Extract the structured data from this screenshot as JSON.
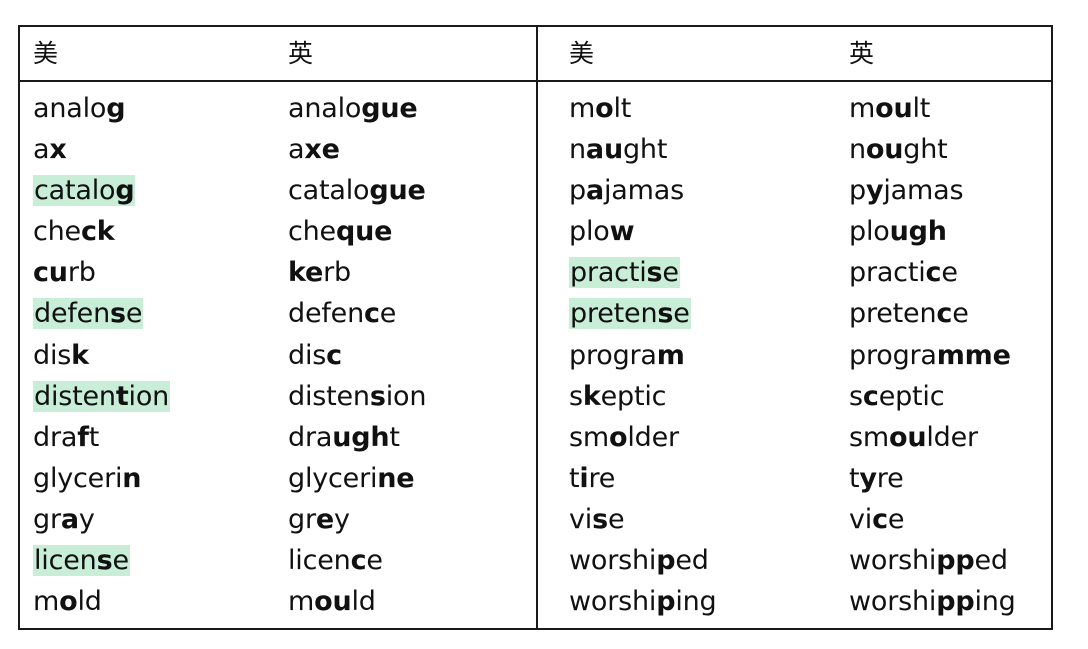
{
  "table": {
    "left": {
      "header": {
        "us": "美",
        "uk": "英"
      },
      "rows": [
        {
          "us": [
            "analo",
            "g",
            ""
          ],
          "uk": [
            "analo",
            "gue",
            ""
          ],
          "highlight": false
        },
        {
          "us": [
            "a",
            "x",
            ""
          ],
          "uk": [
            "a",
            "xe",
            ""
          ],
          "highlight": false
        },
        {
          "us": [
            "catalo",
            "g",
            ""
          ],
          "uk": [
            "catalo",
            "gue",
            ""
          ],
          "highlight": true
        },
        {
          "us": [
            "che",
            "ck",
            ""
          ],
          "uk": [
            "che",
            "que",
            ""
          ],
          "highlight": false
        },
        {
          "us": [
            "",
            "cu",
            "rb"
          ],
          "uk": [
            "",
            "ke",
            "rb"
          ],
          "highlight": false
        },
        {
          "us": [
            "defen",
            "s",
            "e"
          ],
          "uk": [
            "defen",
            "c",
            "e"
          ],
          "highlight": true
        },
        {
          "us": [
            "dis",
            "k",
            ""
          ],
          "uk": [
            "dis",
            "c",
            ""
          ],
          "highlight": false
        },
        {
          "us": [
            "disten",
            "t",
            "ion"
          ],
          "uk": [
            "disten",
            "s",
            "ion"
          ],
          "highlight": true
        },
        {
          "us": [
            "dra",
            "f",
            "t"
          ],
          "uk": [
            "dra",
            "ugh",
            "t"
          ],
          "highlight": false
        },
        {
          "us": [
            "glyceri",
            "n",
            ""
          ],
          "uk": [
            "glyceri",
            "ne",
            ""
          ],
          "highlight": false
        },
        {
          "us": [
            "gr",
            "a",
            "y"
          ],
          "uk": [
            "gr",
            "e",
            "y"
          ],
          "highlight": false
        },
        {
          "us": [
            "licen",
            "s",
            "e"
          ],
          "uk": [
            "licen",
            "c",
            "e"
          ],
          "highlight": true
        },
        {
          "us": [
            "m",
            "o",
            "ld"
          ],
          "uk": [
            "m",
            "ou",
            "ld"
          ],
          "highlight": false
        }
      ]
    },
    "right": {
      "header": {
        "us": "美",
        "uk": "英"
      },
      "rows": [
        {
          "us": [
            "m",
            "o",
            "lt"
          ],
          "uk": [
            "m",
            "ou",
            "lt"
          ],
          "highlight": false
        },
        {
          "us": [
            "n",
            "au",
            "ght"
          ],
          "uk": [
            "n",
            "ou",
            "ght"
          ],
          "highlight": false
        },
        {
          "us": [
            "p",
            "a",
            "jamas"
          ],
          "uk": [
            "p",
            "y",
            "jamas"
          ],
          "highlight": false
        },
        {
          "us": [
            "plo",
            "w",
            ""
          ],
          "uk": [
            "plo",
            "ugh",
            ""
          ],
          "highlight": false
        },
        {
          "us": [
            "practi",
            "s",
            "e"
          ],
          "uk": [
            "practi",
            "c",
            "e"
          ],
          "highlight": true
        },
        {
          "us": [
            "preten",
            "s",
            "e"
          ],
          "uk": [
            "preten",
            "c",
            "e"
          ],
          "highlight": true
        },
        {
          "us": [
            "progra",
            "m",
            ""
          ],
          "uk": [
            "progra",
            "mme",
            ""
          ],
          "highlight": false
        },
        {
          "us": [
            "s",
            "k",
            "eptic"
          ],
          "uk": [
            "s",
            "c",
            "eptic"
          ],
          "highlight": false
        },
        {
          "us": [
            "sm",
            "o",
            "lder"
          ],
          "uk": [
            "sm",
            "ou",
            "lder"
          ],
          "highlight": false
        },
        {
          "us": [
            "t",
            "i",
            "re"
          ],
          "uk": [
            "t",
            "y",
            "re"
          ],
          "highlight": false
        },
        {
          "us": [
            "vi",
            "s",
            "e"
          ],
          "uk": [
            "vi",
            "c",
            "e"
          ],
          "highlight": false
        },
        {
          "us": [
            "worshi",
            "p",
            "ed"
          ],
          "uk": [
            "worshi",
            "pp",
            "ed"
          ],
          "highlight": false
        },
        {
          "us": [
            "worshi",
            "p",
            "ing"
          ],
          "uk": [
            "worshi",
            "pp",
            "ing"
          ],
          "highlight": false
        }
      ]
    },
    "highlight_color": "#c8eed8",
    "border_color": "#1a1a1a"
  }
}
